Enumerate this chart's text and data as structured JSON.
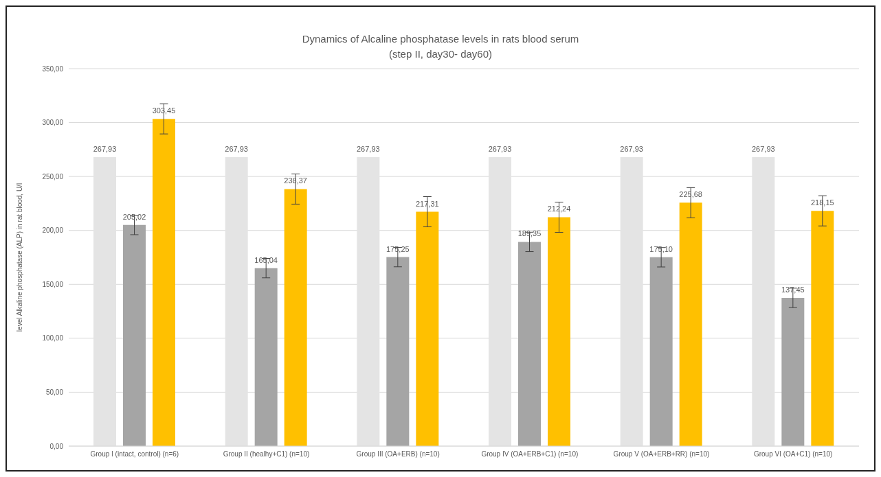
{
  "chart_data": {
    "type": "bar",
    "title": "Dynamics of Alcaline phosphatase levels in rats blood serum",
    "subtitle": "(step II, day30- day60)",
    "ylabel": "level Alkaline phosphatase (ALP) in rat blood, U/l",
    "categories": [
      "Group I (intact, control) (n=6)",
      "Group II (healhy+C1) (n=10)",
      "Group III (OA+ERB) (n=10)",
      "Group IV (OA+ERB+C1) (n=10)",
      "Group V (OA+ERB+RR) (n=10)",
      "Group VI (OA+C1) (n=10)"
    ],
    "series": [
      {
        "color": "#e4e4e4",
        "values": [
          267.93,
          267.93,
          267.93,
          267.93,
          267.93,
          267.93
        ],
        "value_labels": [
          "267,93",
          "267,93",
          "267,93",
          "267,93",
          "267,93",
          "267,93"
        ]
      },
      {
        "color": "#a5a5a5",
        "values": [
          205.02,
          165.04,
          175.25,
          189.35,
          175.1,
          137.45
        ],
        "errors": [
          9,
          9,
          9,
          9,
          9,
          9
        ],
        "value_labels": [
          "205,02",
          "165,04",
          "175,25",
          "189,35",
          "175,10",
          "137,45"
        ]
      },
      {
        "color": "#ffc000",
        "values": [
          303.45,
          238.37,
          217.31,
          212.24,
          225.68,
          218.15
        ],
        "errors": [
          14,
          14,
          14,
          14,
          14,
          14
        ],
        "value_labels": [
          "303,45",
          "238,37",
          "217,31",
          "212,24",
          "225,68",
          "218,15"
        ]
      }
    ],
    "ylim": [
      0,
      350
    ],
    "yticks": [
      {
        "value": 0,
        "label": "0,00"
      },
      {
        "value": 50,
        "label": "50,00"
      },
      {
        "value": 100,
        "label": "100,00"
      },
      {
        "value": 150,
        "label": "150,00"
      },
      {
        "value": 200,
        "label": "200,00"
      },
      {
        "value": 250,
        "label": "250,00"
      },
      {
        "value": 300,
        "label": "300,00"
      },
      {
        "value": 350,
        "label": "350,00"
      }
    ],
    "grid": "y",
    "legend": false
  }
}
